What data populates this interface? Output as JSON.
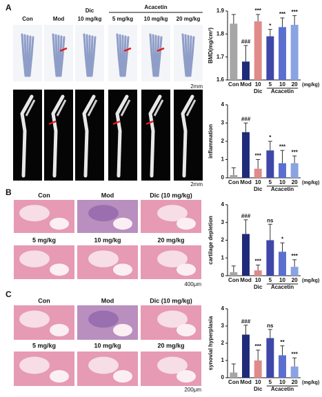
{
  "figure": {
    "panel_a": {
      "letter": "A",
      "con": "Con",
      "mod": "Mod",
      "dic": "Dic",
      "dic_dose": "10 mg/kg",
      "acacetin": "Acacetin",
      "dose_5": "5 mg/kg",
      "dose_10": "10 mg/kg",
      "dose_20": "20 mg/kg",
      "scale_top": "2mm",
      "scale_bottom": "2mm"
    },
    "panel_b": {
      "letter": "B",
      "con": "Con",
      "mod": "Mod",
      "dic": "Dic (10 mg/kg)",
      "dose_5": "5 mg/kg",
      "dose_10": "10 mg/kg",
      "dose_20": "20 mg/kg",
      "scale": "400μm"
    },
    "panel_c": {
      "letter": "C",
      "con": "Con",
      "mod": "Mod",
      "dic": "Dic (10 mg/kg)",
      "dose_5": "5 mg/kg",
      "dose_10": "10 mg/kg",
      "dose_20": "20 mg/kg",
      "scale": "200μm"
    }
  },
  "chart_data": [
    {
      "type": "bar",
      "ylabel": "BMD(mg/cm³)",
      "categories": [
        "Con",
        "Mod",
        "10",
        "5",
        "10",
        "20"
      ],
      "groups": [
        "Dic",
        "Acacetin"
      ],
      "unit": "(mg/kg)",
      "colors": [
        "#a6a6a6",
        "#1f2a7a",
        "#e08a8a",
        "#3f48a8",
        "#5a6fd0",
        "#8aa3e3"
      ],
      "values": [
        1.845,
        1.68,
        1.855,
        1.79,
        1.83,
        1.84
      ],
      "errors": [
        0.04,
        0.07,
        0.03,
        0.03,
        0.04,
        0.04
      ],
      "annotations": [
        null,
        "###",
        "***",
        "*",
        "***",
        "***"
      ],
      "ylim": [
        1.6,
        1.9
      ],
      "yticks": [
        1.6,
        1.7,
        1.8,
        1.9
      ]
    },
    {
      "type": "bar",
      "ylabel": "inflammation",
      "categories": [
        "Con",
        "Mod",
        "10",
        "5",
        "10",
        "20"
      ],
      "groups": [
        "Dic",
        "Acacetin"
      ],
      "unit": "(mg/kg)",
      "colors": [
        "#a6a6a6",
        "#1f2a7a",
        "#e08a8a",
        "#3f48a8",
        "#5a6fd0",
        "#8aa3e3"
      ],
      "values": [
        0.15,
        2.5,
        0.5,
        1.5,
        0.8,
        0.8
      ],
      "errors": [
        0.4,
        0.5,
        0.5,
        0.5,
        0.7,
        0.4
      ],
      "annotations": [
        null,
        "###",
        "***",
        "*",
        "***",
        "***"
      ],
      "ylim": [
        0,
        4
      ],
      "yticks": [
        0,
        1,
        2,
        3,
        4
      ]
    },
    {
      "type": "bar",
      "ylabel": "cartilage depletion",
      "categories": [
        "Con",
        "Mod",
        "10",
        "5",
        "10",
        "20"
      ],
      "groups": [
        "Dic",
        "Acacetin"
      ],
      "unit": "(mg/kg)",
      "colors": [
        "#a6a6a6",
        "#1f2a7a",
        "#e08a8a",
        "#3f48a8",
        "#5a6fd0",
        "#8aa3e3"
      ],
      "values": [
        0.2,
        2.35,
        0.3,
        2.0,
        1.35,
        0.5
      ],
      "errors": [
        0.35,
        0.8,
        0.3,
        0.9,
        0.5,
        0.4
      ],
      "annotations": [
        null,
        "###",
        "***",
        "ns",
        "*",
        "***"
      ],
      "ylim": [
        0,
        4
      ],
      "yticks": [
        0,
        1,
        2,
        3,
        4
      ]
    },
    {
      "type": "bar",
      "ylabel": "synovial hyperplasia",
      "categories": [
        "Con",
        "Mod",
        "10",
        "5",
        "10",
        "20"
      ],
      "groups": [
        "Dic",
        "Acacetin"
      ],
      "unit": "(mg/kg)",
      "colors": [
        "#a6a6a6",
        "#1f2a7a",
        "#e08a8a",
        "#3f48a8",
        "#5a6fd0",
        "#8aa3e3"
      ],
      "values": [
        0.3,
        2.5,
        1.0,
        2.3,
        1.3,
        0.65
      ],
      "errors": [
        0.5,
        0.55,
        0.6,
        0.5,
        0.55,
        0.5
      ],
      "annotations": [
        null,
        "###",
        "***",
        "ns",
        "**",
        "***"
      ],
      "ylim": [
        0,
        4
      ],
      "yticks": [
        0,
        1,
        2,
        3,
        4
      ]
    }
  ]
}
